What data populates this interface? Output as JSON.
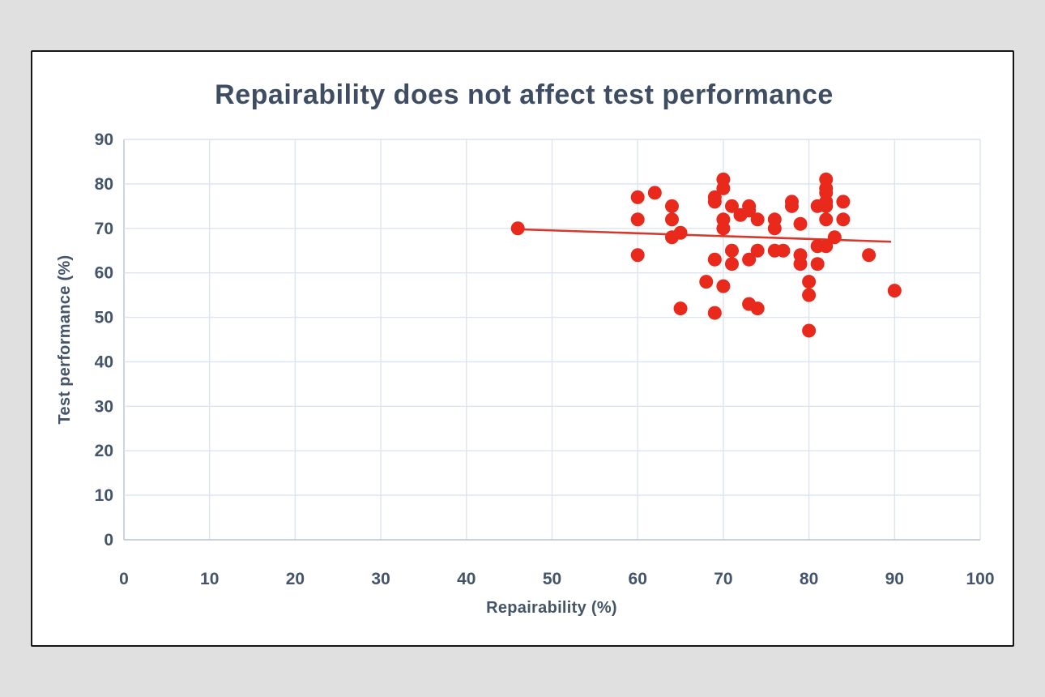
{
  "page": {
    "background_color": "#e0e0e0",
    "card_background": "#ffffff",
    "card_border_color": "#161616"
  },
  "chart_data": {
    "type": "scatter",
    "title": "Repairability does not affect test performance",
    "xlabel": "Repairability (%)",
    "ylabel": "Test performance (%)",
    "xlim": [
      0,
      100
    ],
    "ylim": [
      0,
      90
    ],
    "x_ticks": [
      0,
      10,
      20,
      30,
      40,
      50,
      60,
      70,
      80,
      90,
      100
    ],
    "y_ticks": [
      0,
      10,
      20,
      30,
      40,
      50,
      60,
      70,
      80,
      90
    ],
    "grid": true,
    "legend": "none",
    "text_color": "#44546a",
    "grid_color": "#dce4f1",
    "axis_line_color": "#b6c2d4",
    "point_color": "#e8291c",
    "point_radius": 8.5,
    "trendline_color": "#d8372c",
    "points": [
      [
        46,
        70
      ],
      [
        60,
        77
      ],
      [
        60,
        72
      ],
      [
        60,
        64
      ],
      [
        62,
        78
      ],
      [
        64,
        75
      ],
      [
        64,
        72
      ],
      [
        64,
        68
      ],
      [
        65,
        69
      ],
      [
        65,
        52
      ],
      [
        68,
        58
      ],
      [
        69,
        77
      ],
      [
        69,
        76
      ],
      [
        69,
        63
      ],
      [
        69,
        51
      ],
      [
        70,
        81
      ],
      [
        70,
        79
      ],
      [
        70,
        72
      ],
      [
        70,
        70
      ],
      [
        70,
        57
      ],
      [
        71,
        75
      ],
      [
        71,
        65
      ],
      [
        71,
        62
      ],
      [
        72,
        73
      ],
      [
        73,
        75
      ],
      [
        73,
        74
      ],
      [
        73,
        63
      ],
      [
        73,
        53
      ],
      [
        74,
        72
      ],
      [
        74,
        65
      ],
      [
        74,
        52
      ],
      [
        76,
        72
      ],
      [
        76,
        70
      ],
      [
        76,
        65
      ],
      [
        77,
        65
      ],
      [
        78,
        76
      ],
      [
        78,
        75
      ],
      [
        79,
        71
      ],
      [
        79,
        64
      ],
      [
        79,
        62
      ],
      [
        80,
        58
      ],
      [
        80,
        55
      ],
      [
        80,
        47
      ],
      [
        81,
        75
      ],
      [
        81,
        66
      ],
      [
        81,
        62
      ],
      [
        82,
        81
      ],
      [
        82,
        79
      ],
      [
        82,
        78
      ],
      [
        82,
        76
      ],
      [
        82,
        75
      ],
      [
        82,
        72
      ],
      [
        82,
        66
      ],
      [
        83,
        68
      ],
      [
        84,
        76
      ],
      [
        84,
        72
      ],
      [
        87,
        64
      ],
      [
        90,
        56
      ]
    ],
    "trendline": {
      "x1": 46,
      "y1": 69.8,
      "x2": 89.6,
      "y2": 67.0
    }
  }
}
